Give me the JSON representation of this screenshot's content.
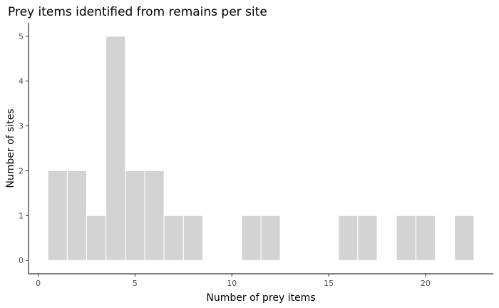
{
  "chart_data": {
    "type": "bar",
    "title": "Prey items identified from remains per site",
    "xlabel": "Number of prey items",
    "ylabel": "Number of sites",
    "xlim": [
      -0.5,
      23.5
    ],
    "ylim": [
      -0.3,
      5.3
    ],
    "x_ticks": [
      0,
      5,
      10,
      15,
      20
    ],
    "y_ticks": [
      0,
      1,
      2,
      3,
      4,
      5
    ],
    "bin_width": 1,
    "grid": false,
    "bins": [
      {
        "x": 1,
        "count": 2
      },
      {
        "x": 2,
        "count": 2
      },
      {
        "x": 3,
        "count": 1
      },
      {
        "x": 4,
        "count": 5
      },
      {
        "x": 5,
        "count": 2
      },
      {
        "x": 6,
        "count": 2
      },
      {
        "x": 7,
        "count": 1
      },
      {
        "x": 8,
        "count": 1
      },
      {
        "x": 9,
        "count": 0
      },
      {
        "x": 10,
        "count": 0
      },
      {
        "x": 11,
        "count": 1
      },
      {
        "x": 12,
        "count": 1
      },
      {
        "x": 13,
        "count": 0
      },
      {
        "x": 14,
        "count": 0
      },
      {
        "x": 15,
        "count": 0
      },
      {
        "x": 16,
        "count": 1
      },
      {
        "x": 17,
        "count": 1
      },
      {
        "x": 18,
        "count": 0
      },
      {
        "x": 19,
        "count": 1
      },
      {
        "x": 20,
        "count": 1
      },
      {
        "x": 21,
        "count": 0
      },
      {
        "x": 22,
        "count": 1
      }
    ],
    "colors": {
      "bar_fill": "#d3d3d3",
      "bar_outline": "#ffffff"
    }
  }
}
